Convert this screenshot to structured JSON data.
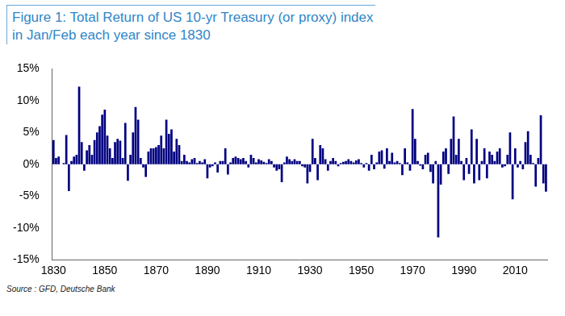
{
  "chart_data": {
    "type": "bar",
    "title": "Figure 1: Total Return of US 10-yr Treasury (or proxy) index in Jan/Feb each year since 1830",
    "source": "Source : GFD, Deutsche Bank",
    "color": "#000080",
    "grid": false,
    "categories": [
      "1830",
      null,
      null,
      null,
      null,
      null,
      null,
      null,
      null,
      null,
      null,
      null,
      null,
      null,
      null,
      null,
      null,
      null,
      null,
      null,
      "1850",
      null,
      null,
      null,
      null,
      null,
      null,
      null,
      null,
      null,
      null,
      null,
      null,
      null,
      null,
      null,
      null,
      null,
      null,
      null,
      "1870",
      null,
      null,
      null,
      null,
      null,
      null,
      null,
      null,
      null,
      null,
      null,
      null,
      null,
      null,
      null,
      null,
      null,
      null,
      null,
      "1890",
      null,
      null,
      null,
      null,
      null,
      null,
      null,
      null,
      null,
      null,
      null,
      null,
      null,
      null,
      null,
      null,
      null,
      null,
      null,
      "1910",
      null,
      null,
      null,
      null,
      null,
      null,
      null,
      null,
      null,
      null,
      null,
      null,
      null,
      null,
      null,
      null,
      null,
      null,
      null,
      "1930",
      null,
      null,
      null,
      null,
      null,
      null,
      null,
      null,
      null,
      null,
      null,
      null,
      null,
      null,
      null,
      null,
      null,
      null,
      null,
      "1950",
      null,
      null,
      null,
      null,
      null,
      null,
      null,
      null,
      null,
      null,
      null,
      null,
      null,
      null,
      null,
      null,
      null,
      null,
      null,
      "1970",
      null,
      null,
      null,
      null,
      null,
      null,
      null,
      null,
      null,
      null,
      null,
      null,
      null,
      null,
      null,
      null,
      null,
      null,
      null,
      "1990",
      null,
      null,
      null,
      null,
      null,
      null,
      null,
      null,
      null,
      null,
      null,
      null,
      null,
      null,
      null,
      null,
      null,
      null,
      null,
      "2010",
      null,
      null,
      null,
      null,
      null,
      null,
      null,
      null,
      null,
      null,
      null,
      null
    ],
    "values": [
      3.8,
      1.0,
      1.2,
      0,
      0.2,
      4.6,
      -4.2,
      0.5,
      1.2,
      1.5,
      12.2,
      3.5,
      -1.0,
      2.2,
      3.0,
      1.5,
      3.8,
      5.0,
      6.0,
      7.8,
      8.6,
      4.5,
      2.5,
      1.0,
      3.5,
      4.0,
      3.7,
      1.0,
      6.5,
      -2.6,
      1.5,
      5.0,
      9.0,
      7.0,
      1.0,
      -0.5,
      -2.0,
      2.0,
      2.5,
      2.5,
      2.7,
      3.0,
      4.5,
      2.5,
      7.0,
      4.8,
      5.5,
      2.0,
      4.0,
      3.0,
      0.5,
      1.5,
      0.5,
      0.3,
      0.8,
      1.0,
      0.2,
      0.5,
      0.3,
      0.8,
      -2.2,
      -0.5,
      -0.3,
      0.3,
      -1.3,
      0.5,
      0.5,
      2.5,
      -1.6,
      0.3,
      1.0,
      1.2,
      1.0,
      0.8,
      1.0,
      0.5,
      -0.5,
      1.5,
      1.0,
      0.3,
      0.8,
      0.6,
      0.4,
      0.2,
      0.8,
      0.5,
      -0.5,
      -1.0,
      -0.8,
      -2.8,
      0.3,
      1.2,
      0.8,
      0.5,
      0.8,
      0.5,
      0.5,
      -0.3,
      -0.5,
      -3.0,
      -1.2,
      4.0,
      1.0,
      -2.5,
      3.0,
      2.5,
      0.8,
      -1.0,
      0.5,
      1.0,
      0.5,
      -0.3,
      0.2,
      0.4,
      0.5,
      0.8,
      0.5,
      0.3,
      0.6,
      0.8,
      0.2,
      -0.5,
      0.2,
      -1.0,
      1.5,
      -0.8,
      0.3,
      2.0,
      2.2,
      -0.7,
      2.5,
      0.5,
      1.8,
      0.3,
      0.5,
      0.2,
      -1.7,
      2.5,
      0.3,
      -1.0,
      8.7,
      4.0,
      0.5,
      -0.2,
      -0.8,
      1.5,
      1.8,
      -1.2,
      -3.0,
      0.5,
      -11.5,
      -3.2,
      2.0,
      2.5,
      -1.5,
      4.0,
      7.5,
      1.5,
      4.0,
      0.5,
      -2.5,
      1.0,
      -1.5,
      5.5,
      -3.0,
      4.0,
      -2.5,
      0.5,
      2.5,
      -2.2,
      2.0,
      1.5,
      0.5,
      2.0,
      2.5,
      -0.5,
      -0.3,
      1.5,
      5.0,
      -5.5,
      2.5,
      -0.5,
      0.5,
      -0.8,
      3.5,
      5.2,
      1.5,
      0.2,
      -3.5,
      1.0,
      7.7,
      -3.0,
      -4.3
    ],
    "ylim": [
      -15,
      15
    ],
    "yticks": [
      {
        "value": -15,
        "label": "-15%"
      },
      {
        "value": -10,
        "label": "-10%"
      },
      {
        "value": -5,
        "label": "-5%"
      },
      {
        "value": 0,
        "label": "0%"
      },
      {
        "value": 5,
        "label": "5%"
      },
      {
        "value": 10,
        "label": "10%"
      },
      {
        "value": 15,
        "label": "15%"
      }
    ]
  }
}
